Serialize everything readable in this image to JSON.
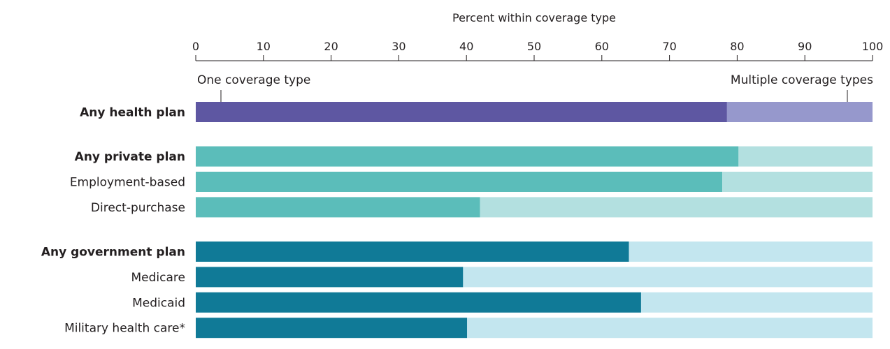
{
  "chart_data": {
    "type": "bar",
    "orientation": "horizontal",
    "stacked": true,
    "xlabel": "Percent within coverage type",
    "xlim": [
      0,
      100
    ],
    "xticks": [
      0,
      10,
      20,
      30,
      40,
      50,
      60,
      70,
      80,
      90,
      100
    ],
    "annotations": {
      "left": "One coverage type",
      "right": "Multiple coverage types"
    },
    "groups": [
      {
        "rows": [
          {
            "label": "Any health plan",
            "bold": true,
            "one": 78.5,
            "colors": [
              "#5e57a2",
              "#9698cc"
            ]
          }
        ]
      },
      {
        "rows": [
          {
            "label": "Any private plan",
            "bold": true,
            "one": 80.2,
            "colors": [
              "#5bbdba",
              "#b3e0e0"
            ]
          },
          {
            "label": "Employment-based",
            "bold": false,
            "one": 77.8,
            "colors": [
              "#5bbdba",
              "#b3e0e0"
            ]
          },
          {
            "label": "Direct-purchase",
            "bold": false,
            "one": 42.0,
            "colors": [
              "#5bbdba",
              "#b3e0e0"
            ]
          }
        ]
      },
      {
        "rows": [
          {
            "label": "Any government plan",
            "bold": true,
            "one": 64.0,
            "colors": [
              "#107a97",
              "#c3e6ef"
            ]
          },
          {
            "label": "Medicare",
            "bold": false,
            "one": 39.5,
            "colors": [
              "#107a97",
              "#c3e6ef"
            ]
          },
          {
            "label": "Medicaid",
            "bold": false,
            "one": 65.8,
            "colors": [
              "#107a97",
              "#c3e6ef"
            ]
          },
          {
            "label": "Military health care*",
            "bold": false,
            "one": 40.1,
            "colors": [
              "#107a97",
              "#c3e6ef"
            ]
          }
        ]
      }
    ]
  }
}
